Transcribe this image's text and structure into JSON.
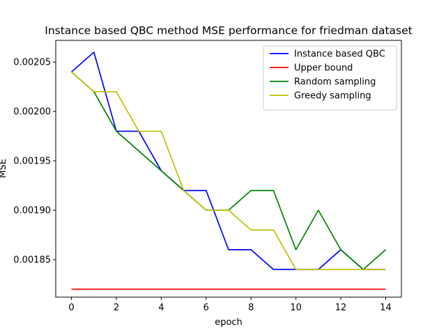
{
  "chart_data": {
    "type": "line",
    "title": "Instance based QBC method MSE performance for friedman dataset",
    "xlabel": "epoch",
    "ylabel": "MSE",
    "xlim": [
      -0.7,
      14.7
    ],
    "ylim": [
      0.001812,
      0.002072
    ],
    "xticks": [
      0,
      2,
      4,
      6,
      8,
      10,
      12,
      14
    ],
    "xtick_labels": [
      "0",
      "2",
      "4",
      "6",
      "8",
      "10",
      "12",
      "14"
    ],
    "yticks": [
      0.00185,
      0.0019,
      0.00195,
      0.002,
      0.00205
    ],
    "ytick_labels": [
      "0.00185",
      "0.00190",
      "0.00195",
      "0.00200",
      "0.00205"
    ],
    "grid": false,
    "legend_position": "top-right",
    "x": [
      0,
      1,
      2,
      3,
      4,
      5,
      6,
      7,
      8,
      9,
      10,
      11,
      12,
      13,
      14
    ],
    "series": [
      {
        "name": "Instance based QBC",
        "color": "#0000ff",
        "values": [
          0.00204,
          0.00206,
          0.00198,
          0.00198,
          0.00194,
          0.00192,
          0.00192,
          0.00186,
          0.00186,
          0.00184,
          0.00184,
          0.00184,
          0.00186,
          0.00184,
          0.00184
        ]
      },
      {
        "name": "Upper bound",
        "color": "#ff0000",
        "values": [
          0.00182,
          0.00182,
          0.00182,
          0.00182,
          0.00182,
          0.00182,
          0.00182,
          0.00182,
          0.00182,
          0.00182,
          0.00182,
          0.00182,
          0.00182,
          0.00182,
          0.00182
        ]
      },
      {
        "name": "Random sampling",
        "color": "#008000",
        "values": [
          0.00204,
          0.00202,
          0.00198,
          0.00196,
          0.00194,
          0.00192,
          0.0019,
          0.0019,
          0.00192,
          0.00192,
          0.00186,
          0.0019,
          0.00186,
          0.00184,
          0.00186
        ]
      },
      {
        "name": "Greedy sampling",
        "color": "#bfbf00",
        "values": [
          0.00204,
          0.00202,
          0.00202,
          0.00198,
          0.00198,
          0.00192,
          0.0019,
          0.0019,
          0.00188,
          0.00188,
          0.00184,
          0.00184,
          0.00184,
          0.00184,
          0.00184
        ]
      }
    ]
  }
}
